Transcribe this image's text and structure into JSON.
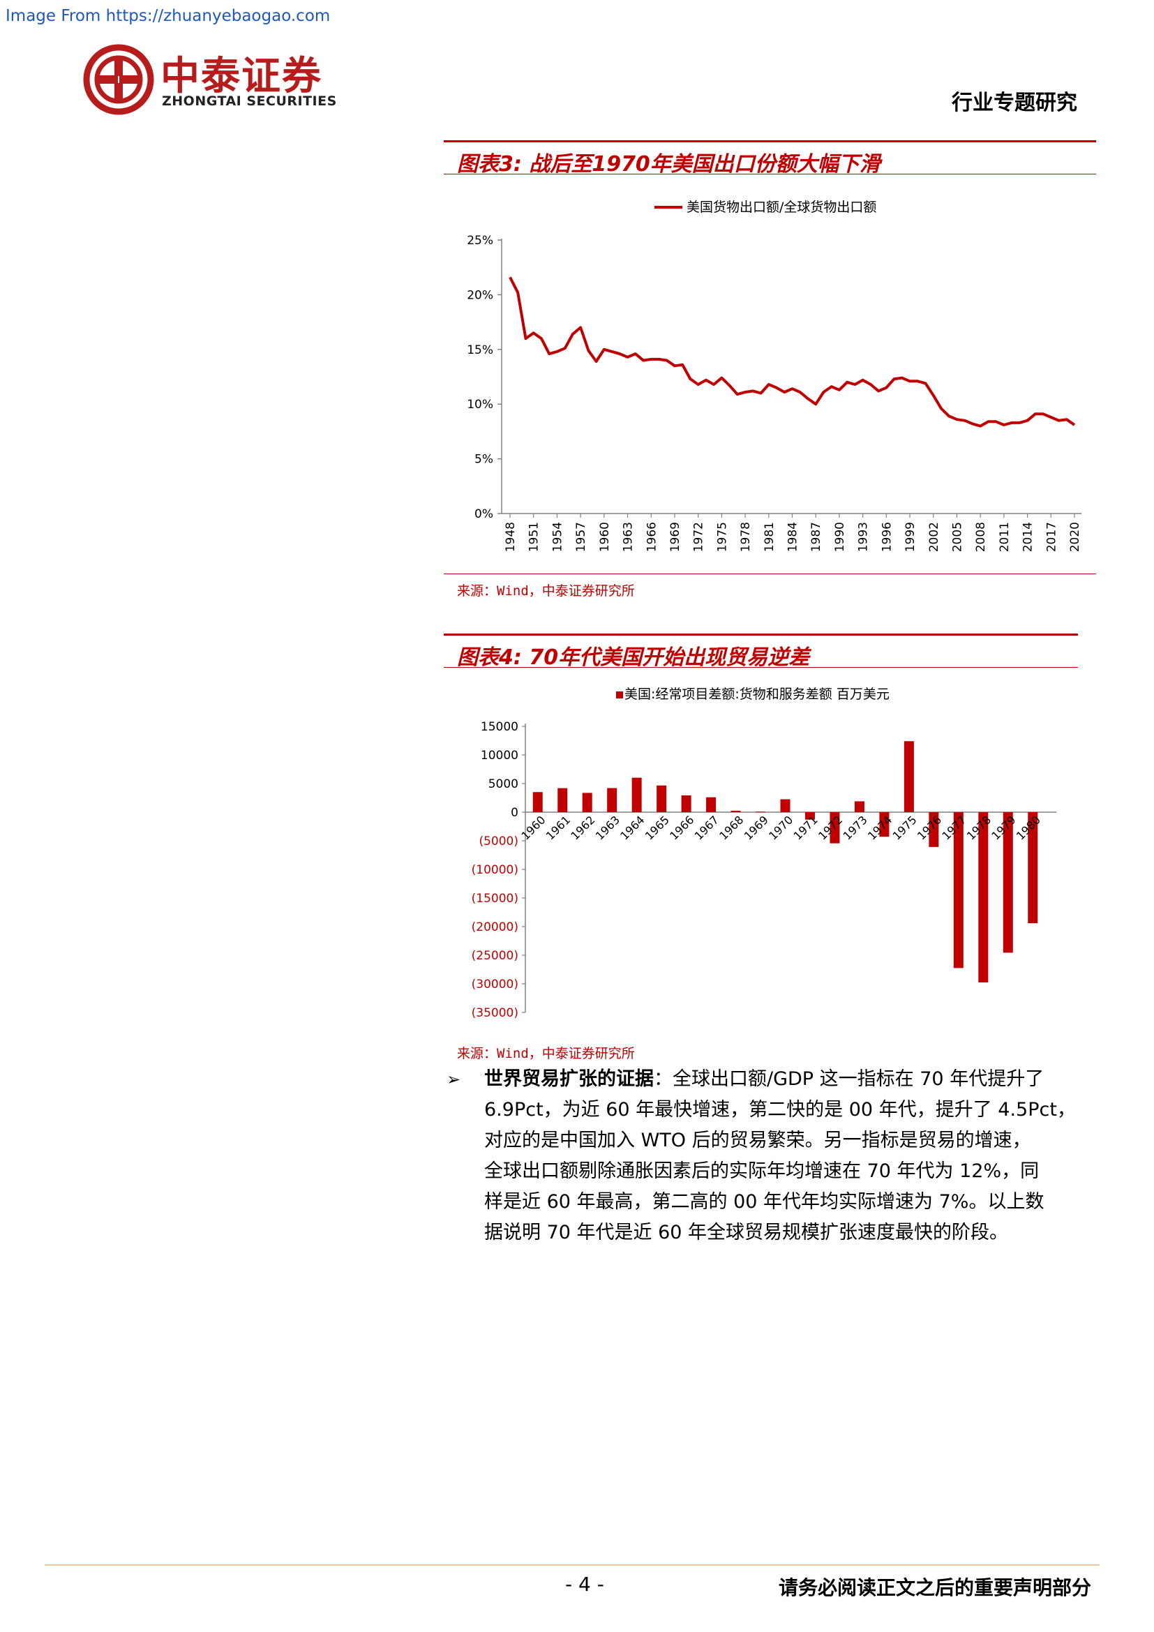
{
  "watermark": "Image From https://zhuanyebaogao.com",
  "logo": {
    "cn": "中泰证券",
    "en": "ZHONGTAI SECURITIES"
  },
  "header_tag": "行业专题研究",
  "figure3": {
    "title": "图表3: 战后至1970年美国出口份额大幅下滑",
    "source": "来源：Wind，中泰证券研究所"
  },
  "figure4": {
    "title": "图表4: 70年代美国开始出现贸易逆差",
    "source": "来源：Wind，中泰证券研究所"
  },
  "paragraph": {
    "bullet": "➢",
    "lead": "世界贸易扩张的证据",
    "lines": [
      "：全球出口额/GDP 这一指标在 70 年代提升了",
      "6.9Pct，为近 60 年最快增速，第二快的是 00 年代，提升了 4.5Pct，",
      "对应的是中国加入 WTO 后的贸易繁荣。另一指标是贸易的增速，",
      "全球出口额剔除通胀因素后的实际年均增速在 70 年代为 12%，同",
      "样是近 60 年最高，第二高的 00 年代年均实际增速为 7%。以上数",
      "据说明 70 年代是近 60 年全球贸易规模扩张速度最快的阶段。"
    ]
  },
  "footer": {
    "page": "- 4 -",
    "disclaimer": "请务必阅读正文之后的重要声明部分"
  },
  "chart_data": [
    {
      "type": "line",
      "legend_position": "top",
      "series": [
        {
          "name": "美国货物出口额/全球货物出口额",
          "color": "#c00000"
        }
      ],
      "years": [
        1948,
        1949,
        1950,
        1951,
        1952,
        1953,
        1954,
        1955,
        1956,
        1957,
        1958,
        1959,
        1960,
        1961,
        1962,
        1963,
        1964,
        1965,
        1966,
        1967,
        1968,
        1969,
        1970,
        1971,
        1972,
        1973,
        1974,
        1975,
        1976,
        1977,
        1978,
        1979,
        1980,
        1981,
        1982,
        1983,
        1984,
        1985,
        1986,
        1987,
        1988,
        1989,
        1990,
        1991,
        1992,
        1993,
        1994,
        1995,
        1996,
        1997,
        1998,
        1999,
        2000,
        2001,
        2002,
        2003,
        2004,
        2005,
        2006,
        2007,
        2008,
        2009,
        2010,
        2011,
        2012,
        2013,
        2014,
        2015,
        2016,
        2017,
        2018,
        2019,
        2020
      ],
      "values": [
        21.6,
        20.2,
        16.0,
        16.5,
        16.0,
        14.6,
        14.8,
        15.1,
        16.4,
        17.0,
        14.9,
        13.9,
        15.0,
        14.8,
        14.6,
        14.3,
        14.6,
        14.0,
        14.1,
        14.1,
        14.0,
        13.5,
        13.6,
        12.3,
        11.8,
        12.2,
        11.8,
        12.4,
        11.7,
        10.9,
        11.1,
        11.2,
        11.0,
        11.8,
        11.5,
        11.1,
        11.4,
        11.1,
        10.5,
        10.0,
        11.1,
        11.6,
        11.3,
        12.0,
        11.8,
        12.2,
        11.8,
        11.2,
        11.5,
        12.3,
        12.4,
        12.1,
        12.1,
        11.9,
        10.8,
        9.6,
        8.9,
        8.6,
        8.5,
        8.2,
        8.0,
        8.4,
        8.4,
        8.1,
        8.3,
        8.3,
        8.5,
        9.1,
        9.1,
        8.8,
        8.5,
        8.6,
        8.1
      ],
      "x_tick_labels": [
        "1948",
        "1951",
        "1954",
        "1957",
        "1960",
        "1963",
        "1966",
        "1969",
        "1972",
        "1975",
        "1978",
        "1981",
        "1984",
        "1987",
        "1990",
        "1993",
        "1996",
        "1999",
        "2002",
        "2005",
        "2008",
        "2011",
        "2014",
        "2017",
        "2020"
      ],
      "y_tick_labels": [
        "0%",
        "5%",
        "10%",
        "15%",
        "20%",
        "25%"
      ],
      "ylim": [
        0,
        25
      ],
      "grid": false
    },
    {
      "type": "bar",
      "legend_position": "top",
      "series": [
        {
          "name": "美国:经常项目差额:货物和服务差额 百万美元",
          "color": "#c00000"
        }
      ],
      "categories": [
        "1960",
        "1961",
        "1962",
        "1963",
        "1964",
        "1965",
        "1966",
        "1967",
        "1968",
        "1969",
        "1970",
        "1971",
        "1972",
        "1973",
        "1974",
        "1975",
        "1976",
        "1977",
        "1978",
        "1979",
        "1980"
      ],
      "values": [
        3508,
        4195,
        3370,
        4210,
        6022,
        4664,
        2939,
        2604,
        250,
        91,
        2254,
        -1303,
        -5443,
        1900,
        -4293,
        12404,
        -6082,
        -27246,
        -29763,
        -24565,
        -19407
      ],
      "y_tick_labels": [
        "15000",
        "10000",
        "5000",
        "0",
        "(5000)",
        "(10000)",
        "(15000)",
        "(20000)",
        "(25000)",
        "(30000)",
        "(35000)"
      ],
      "ylim": [
        -35000,
        15000
      ],
      "grid": false
    }
  ]
}
